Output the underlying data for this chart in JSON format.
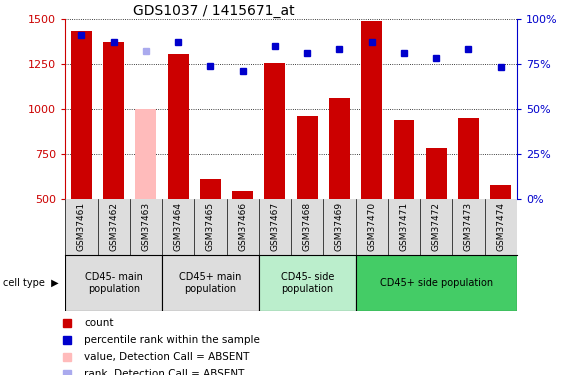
{
  "title": "GDS1037 / 1415671_at",
  "samples": [
    "GSM37461",
    "GSM37462",
    "GSM37463",
    "GSM37464",
    "GSM37465",
    "GSM37466",
    "GSM37467",
    "GSM37468",
    "GSM37469",
    "GSM37470",
    "GSM37471",
    "GSM37472",
    "GSM37473",
    "GSM37474"
  ],
  "counts": [
    1430,
    1370,
    1000,
    1305,
    610,
    545,
    1255,
    960,
    1060,
    1490,
    940,
    780,
    950,
    575
  ],
  "ranks": [
    91,
    87,
    82,
    87,
    74,
    71,
    85,
    81,
    83,
    87,
    81,
    78,
    83,
    73
  ],
  "absent_bar": [
    false,
    false,
    true,
    false,
    false,
    false,
    false,
    false,
    false,
    false,
    false,
    false,
    false,
    false
  ],
  "absent_rank": [
    false,
    false,
    true,
    false,
    false,
    false,
    false,
    false,
    false,
    false,
    false,
    false,
    false,
    false
  ],
  "bar_color": "#cc0000",
  "bar_absent_color": "#ffbbbb",
  "rank_color": "#0000cc",
  "rank_absent_color": "#aaaaee",
  "ylim_left": [
    500,
    1500
  ],
  "ylim_right": [
    0,
    100
  ],
  "yticks_left": [
    500,
    750,
    1000,
    1250,
    1500
  ],
  "yticks_right": [
    0,
    25,
    50,
    75,
    100
  ],
  "cell_types": [
    {
      "label": "CD45- main\npopulation",
      "start": 0,
      "end": 3,
      "color": "#dddddd"
    },
    {
      "label": "CD45+ main\npopulation",
      "start": 3,
      "end": 6,
      "color": "#dddddd"
    },
    {
      "label": "CD45- side\npopulation",
      "start": 6,
      "end": 9,
      "color": "#bbeecc"
    },
    {
      "label": "CD45+ side population",
      "start": 9,
      "end": 14,
      "color": "#44cc66"
    }
  ],
  "left_tick_color": "#cc0000",
  "right_tick_color": "#0000cc",
  "tick_label_color": "#cc0000",
  "right_tick_label_color": "#0000cc"
}
